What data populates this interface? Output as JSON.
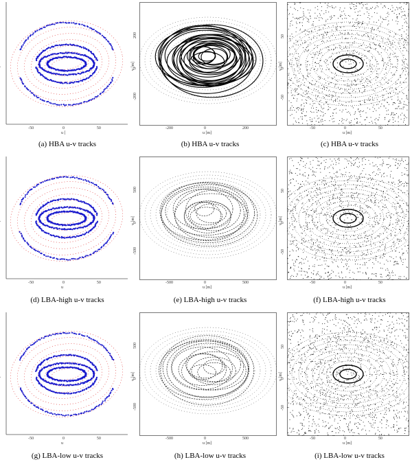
{
  "figure": {
    "panels": [
      {
        "caption": "(a) HBA u-v tracks",
        "style": "color",
        "density": "sparse",
        "xlabel": "u [",
        "ylabel": "v [",
        "xticks": [
          "-50",
          "0",
          "50"
        ],
        "yticks": []
      },
      {
        "caption": "(b) HBA u-v tracks",
        "style": "black-dense",
        "density": "dense",
        "xlabel": "u [m]",
        "ylabel": "v [m]",
        "xticks": [
          "-200",
          "0",
          "200"
        ],
        "yticks": [
          "200",
          "0",
          "-200"
        ]
      },
      {
        "caption": "(c) HBA u-v tracks",
        "style": "black-speckle",
        "density": "speckle",
        "xlabel": "u [m]",
        "ylabel": "v [m]",
        "xticks": [
          "-50",
          "0",
          "50"
        ],
        "yticks": [
          "50",
          "0",
          "-50"
        ]
      },
      {
        "caption": "(d) LBA-high u-v tracks",
        "style": "color",
        "density": "sparse",
        "xlabel": "u",
        "ylabel": "v [",
        "xticks": [
          "-50",
          "0",
          "50"
        ],
        "yticks": []
      },
      {
        "caption": "(e) LBA-high u-v tracks",
        "style": "black-medium",
        "density": "medium",
        "xlabel": "u [m]",
        "ylabel": "v [m]",
        "xticks": [
          "-500",
          "0",
          "500"
        ],
        "yticks": [
          "500",
          "0",
          "-500"
        ]
      },
      {
        "caption": "(f) LBA-high u-v tracks",
        "style": "black-speckle",
        "density": "speckle",
        "xlabel": "u [m]",
        "ylabel": "v [m]",
        "xticks": [
          "-50",
          "0",
          "50"
        ],
        "yticks": [
          "50",
          "0",
          "-50"
        ]
      },
      {
        "caption": "(g) LBA-low u-v tracks",
        "style": "color",
        "density": "sparse",
        "xlabel": "u",
        "ylabel": "v [",
        "xticks": [
          "-50",
          "0",
          "50"
        ],
        "yticks": []
      },
      {
        "caption": "(h) LBA-low u-v tracks",
        "style": "black-medium",
        "density": "medium",
        "xlabel": "u [m]",
        "ylabel": "v [m]",
        "xticks": [
          "-500",
          "0",
          "500"
        ],
        "yticks": [
          "500",
          "0",
          "-500"
        ]
      },
      {
        "caption": "(i) LBA-low u-v tracks",
        "style": "black-speckle",
        "density": "speckle",
        "xlabel": "u [m]",
        "ylabel": "v [m]",
        "xticks": [
          "-50",
          "0",
          "50"
        ],
        "yticks": [
          "50",
          "0",
          "-50"
        ]
      }
    ],
    "colors": {
      "blue": "#1a1acc",
      "red": "#dd2222",
      "black": "#000000",
      "axis": "#555555"
    }
  }
}
